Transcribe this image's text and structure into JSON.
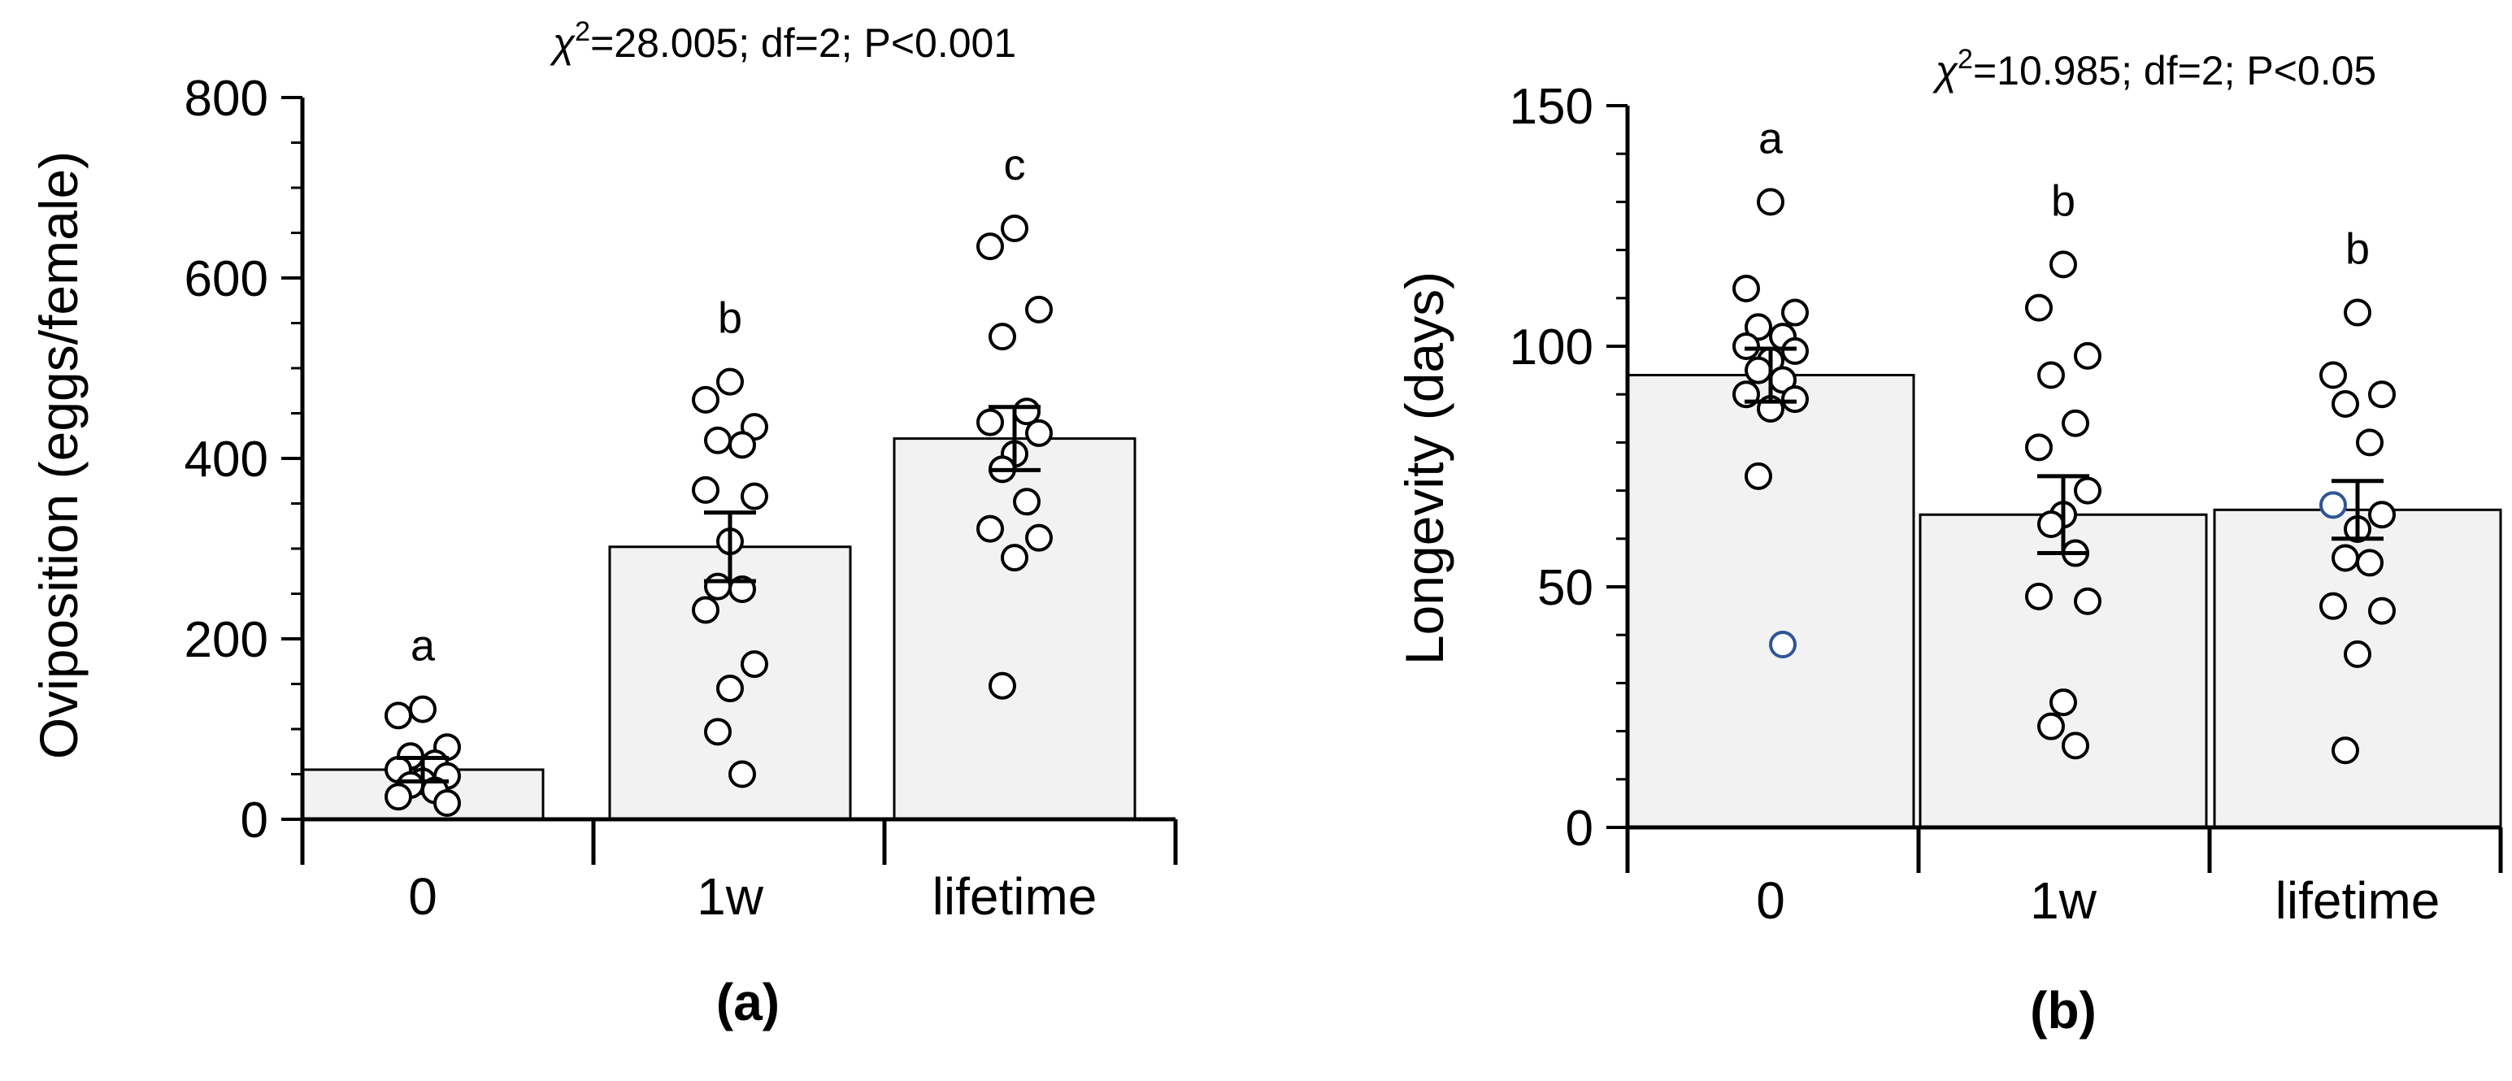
{
  "chart_data": [
    {
      "type": "bar",
      "panel_label": "(a)",
      "ylabel": "Oviposition (eggs/female)",
      "xlabel": "",
      "ylim": [
        0,
        800
      ],
      "yticks": [
        0,
        200,
        400,
        600,
        800
      ],
      "y_minor_step": 50,
      "stat_text": "χ²=28.005; df=2; P<0.001",
      "stat": {
        "chi_symbol": "χ",
        "sup": "2",
        "rest": "=28.005; df=2; P<0.001"
      },
      "categories": [
        "0",
        "1w",
        "lifetime"
      ],
      "values": [
        55,
        302,
        422
      ],
      "se": [
        13,
        38,
        35
      ],
      "letters": [
        "a",
        "b",
        "c"
      ],
      "points": [
        [
          122,
          115,
          80,
          70,
          62,
          55,
          48,
          42,
          38,
          32,
          25,
          18
        ],
        [
          485,
          465,
          435,
          420,
          415,
          365,
          358,
          308,
          258,
          255,
          232,
          172,
          145,
          97,
          50
        ],
        [
          655,
          635,
          565,
          535,
          452,
          440,
          428,
          405,
          388,
          352,
          322,
          312,
          290,
          148
        ]
      ]
    },
    {
      "type": "bar",
      "panel_label": "(b)",
      "ylabel": "Longevity (days)",
      "xlabel": "",
      "ylim": [
        0,
        150
      ],
      "yticks": [
        0,
        50,
        100,
        150
      ],
      "y_minor_step": 10,
      "stat_text": "χ²=10.985; df=2; P<0.05",
      "stat": {
        "chi_symbol": "χ",
        "sup": "2",
        "rest": "=10.985; df=2; P<0.05"
      },
      "categories": [
        "0",
        "1w",
        "lifetime"
      ],
      "values": [
        94,
        65,
        66
      ],
      "se": [
        5.5,
        8,
        6
      ],
      "letters": [
        "a",
        "b",
        "b"
      ],
      "points": [
        [
          130,
          112,
          107,
          104,
          102,
          100,
          99,
          97,
          95,
          93,
          90,
          89,
          87,
          73,
          38
        ],
        [
          117,
          108,
          98,
          94,
          84,
          79,
          70,
          65,
          63,
          57,
          48,
          47,
          26,
          21,
          17
        ],
        [
          107,
          94,
          90,
          88,
          80,
          67,
          65,
          62,
          56,
          55,
          46,
          45,
          36,
          16
        ]
      ],
      "blue_points": [
        [
          0,
          14
        ],
        [
          2,
          5
        ]
      ]
    }
  ],
  "colors": {
    "bar_fill": "#f2f2f2",
    "stroke": "#000000",
    "blue_point": "#2f5597",
    "background": "#ffffff"
  }
}
